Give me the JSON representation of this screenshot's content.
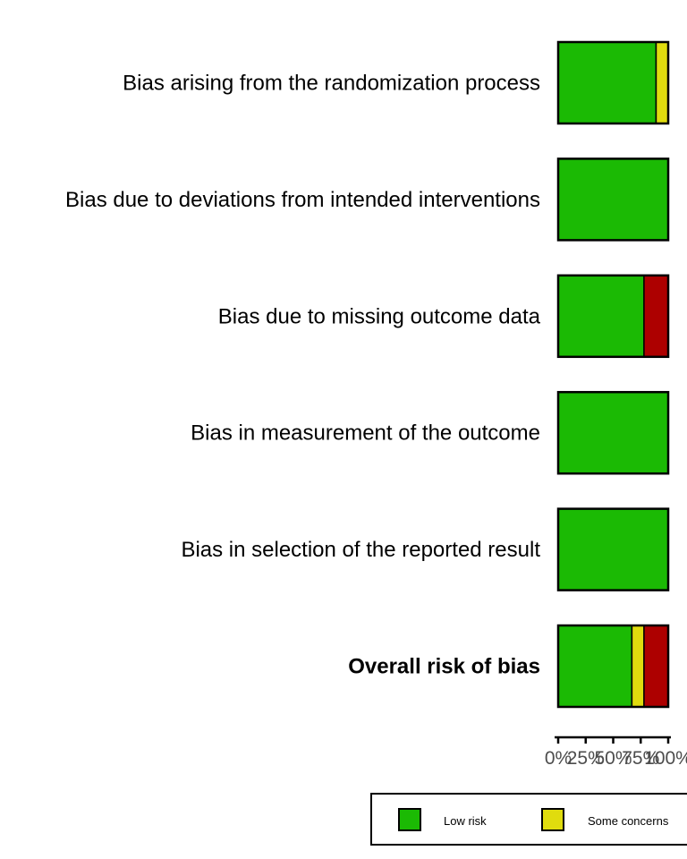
{
  "chart_data": {
    "type": "bar",
    "orientation": "horizontal",
    "stacked": true,
    "percent": true,
    "categories": [
      "Bias arising from the randomization process",
      "Bias due to deviations from intended interventions",
      "Bias due to missing outcome data",
      "Bias in measurement of the outcome",
      "Bias in selection of the reported result",
      "Overall risk of bias"
    ],
    "bold_categories": [
      "Overall risk of bias"
    ],
    "series": [
      {
        "name": "Low risk",
        "color": "#1bba04",
        "values": [
          89,
          100,
          78,
          100,
          100,
          67
        ]
      },
      {
        "name": "Some concerns",
        "color": "#e0dc0e",
        "values": [
          11,
          0,
          0,
          0,
          0,
          11
        ]
      },
      {
        "name": "",
        "color": "#ad0000",
        "values": [
          0,
          0,
          22,
          0,
          0,
          22
        ]
      }
    ],
    "xlim": [
      0,
      100
    ],
    "x_ticks": [
      "0%",
      "25%",
      "50%",
      "75%",
      "100%"
    ],
    "x_tick_values": [
      0,
      25,
      50,
      75,
      100
    ],
    "grid": false,
    "legend_position": "bottom"
  }
}
